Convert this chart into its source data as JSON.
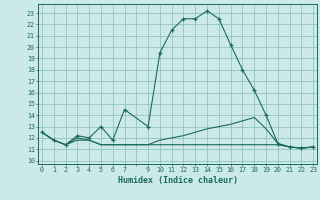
{
  "xlabel": "Humidex (Indice chaleur)",
  "bg_color": "#cce9e9",
  "grid_color": "#88bbbb",
  "line_color": "#1a6b5a",
  "xlim": [
    -0.3,
    23.3
  ],
  "ylim": [
    9.7,
    23.8
  ],
  "yticks": [
    10,
    11,
    12,
    13,
    14,
    15,
    16,
    17,
    18,
    19,
    20,
    21,
    22,
    23
  ],
  "xtick_labels": [
    "0",
    "1",
    "2",
    "3",
    "4",
    "5",
    "6",
    "7",
    "",
    "9",
    "10",
    "11",
    "12",
    "13",
    "14",
    "15",
    "16",
    "17",
    "18",
    "19",
    "20",
    "21",
    "22",
    "23"
  ],
  "series1_x": [
    0,
    1,
    2,
    3,
    4,
    5,
    6,
    7,
    9,
    10,
    11,
    12,
    13,
    14,
    15,
    16,
    17,
    18,
    19,
    20,
    21,
    22,
    23
  ],
  "series1_y": [
    12.5,
    11.8,
    11.4,
    12.2,
    12.0,
    13.0,
    11.8,
    14.5,
    13.0,
    19.5,
    21.5,
    22.5,
    22.5,
    23.2,
    22.5,
    20.2,
    18.0,
    16.2,
    14.0,
    11.5,
    11.2,
    11.1,
    11.2
  ],
  "series2_x": [
    0,
    1,
    2,
    3,
    4,
    5,
    6,
    7,
    9,
    10,
    11,
    12,
    13,
    14,
    15,
    16,
    17,
    18,
    19,
    20,
    21,
    22,
    23
  ],
  "series2_y": [
    12.5,
    11.8,
    11.4,
    12.0,
    11.8,
    11.4,
    11.4,
    11.4,
    11.4,
    11.4,
    11.4,
    11.4,
    11.4,
    11.4,
    11.4,
    11.4,
    11.4,
    11.4,
    11.4,
    11.4,
    11.2,
    11.1,
    11.2
  ],
  "series3_x": [
    0,
    1,
    2,
    3,
    4,
    5,
    6,
    7,
    9,
    10,
    11,
    12,
    13,
    14,
    15,
    16,
    17,
    18,
    19,
    20,
    21,
    22,
    23
  ],
  "series3_y": [
    12.5,
    11.8,
    11.4,
    11.8,
    11.8,
    11.4,
    11.4,
    11.4,
    11.4,
    11.8,
    12.0,
    12.2,
    12.5,
    12.8,
    13.0,
    13.2,
    13.5,
    13.8,
    12.8,
    11.5,
    11.2,
    11.1,
    11.2
  ]
}
